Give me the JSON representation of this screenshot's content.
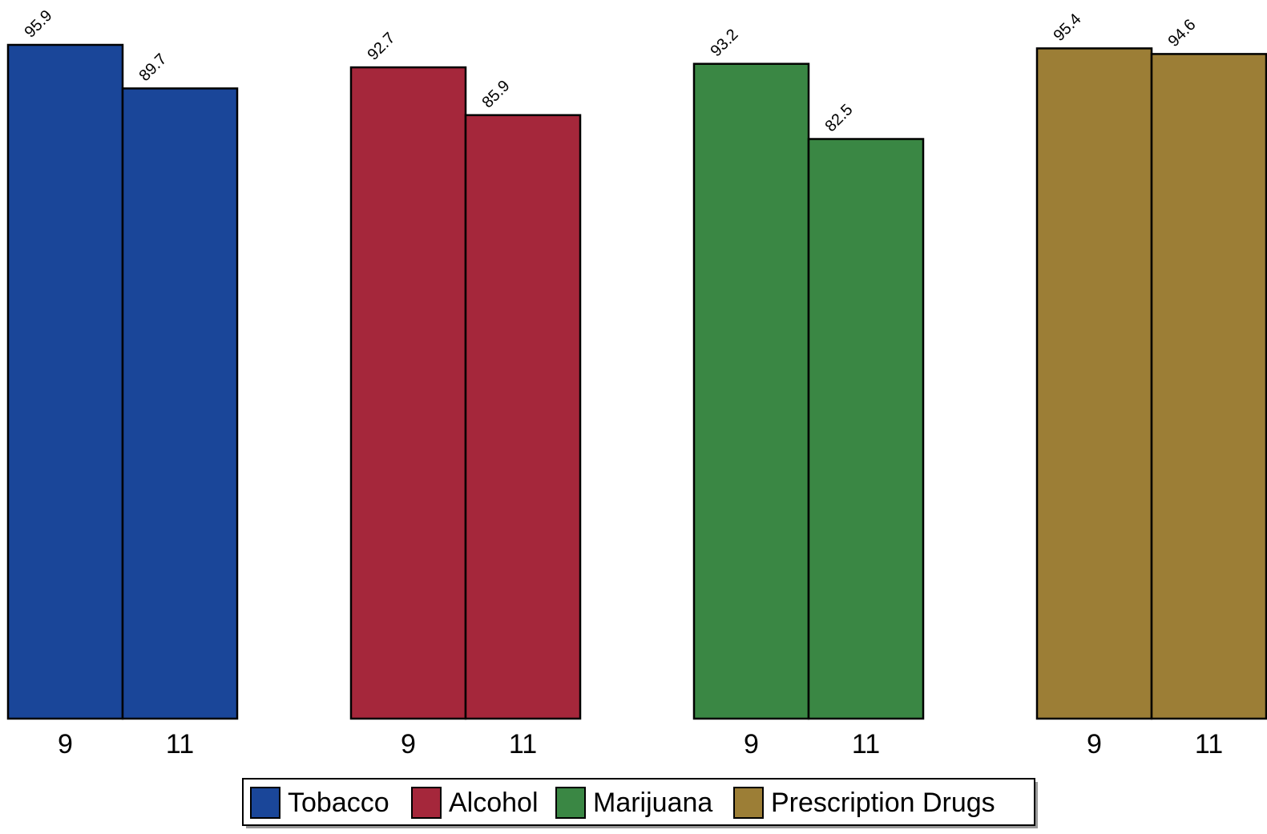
{
  "chart_data": {
    "type": "bar",
    "categories": [
      "9",
      "11"
    ],
    "series": [
      {
        "name": "Tobacco",
        "values": [
          95.9,
          89.7
        ],
        "color": "#1a4699"
      },
      {
        "name": "Alcohol",
        "values": [
          92.7,
          85.9
        ],
        "color": "#a5273b"
      },
      {
        "name": "Marijuana",
        "values": [
          93.2,
          82.5
        ],
        "color": "#3a8744"
      },
      {
        "name": "Prescription Drugs",
        "values": [
          95.4,
          94.6
        ],
        "color": "#9c7e36"
      }
    ],
    "ylim": [
      0,
      100
    ],
    "grid": false,
    "legend_position": "bottom",
    "title": "",
    "xlabel": "",
    "ylabel": ""
  }
}
